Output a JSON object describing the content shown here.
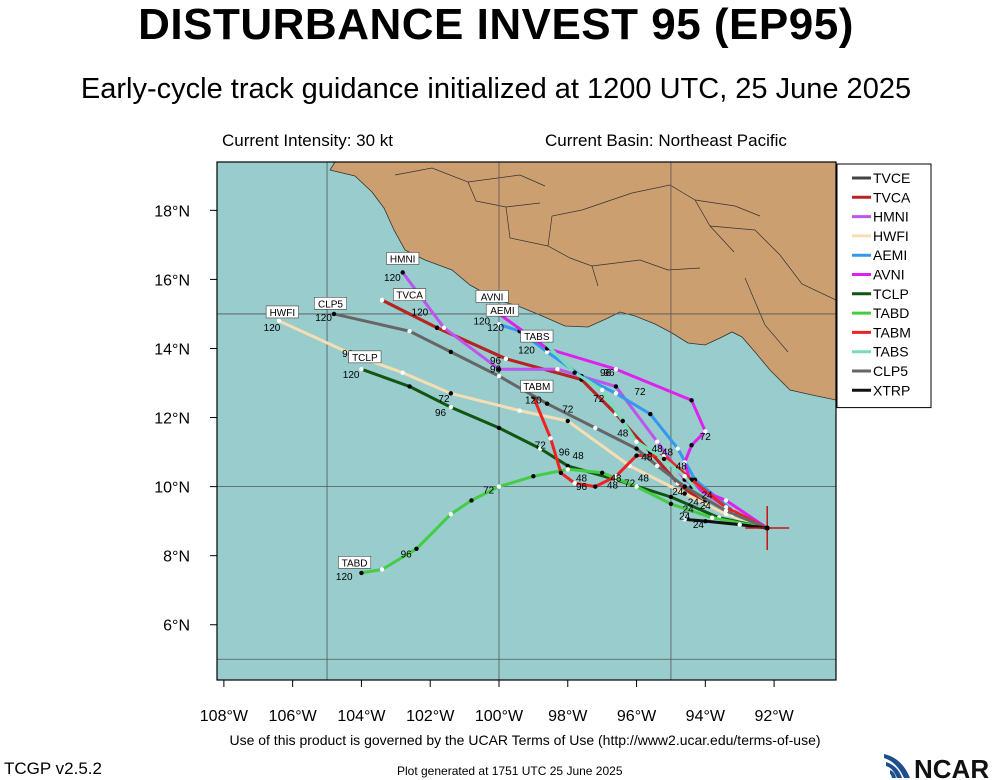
{
  "title": "DISTURBANCE INVEST 95 (EP95)",
  "subtitle": "Early-cycle track guidance initialized at 1200 UTC, 25 June 2025",
  "current_intensity": "Current Intensity: 30 kt",
  "current_basin": "Current Basin: Northeast Pacific",
  "footer": "Use of this product is governed by the UCAR Terms of Use (http://www2.ucar.edu/terms-of-use)",
  "version": "TCGP v2.5.2",
  "generated": "Plot generated at 1751 UTC   25 June 2025",
  "logo_text": "NCAR",
  "colors": {
    "ocean": "#99cccc",
    "land": "#cc9f70"
  },
  "axes": {
    "lon_ticks": [
      "108°W",
      "106°W",
      "104°W",
      "102°W",
      "100°W",
      "98°W",
      "96°W",
      "94°W",
      "92°W"
    ],
    "lon_values": [
      -108,
      -106,
      -104,
      -102,
      -100,
      -98,
      -96,
      -94,
      -92
    ],
    "lat_ticks": [
      "6°N",
      "8°N",
      "10°N",
      "12°N",
      "14°N",
      "16°N",
      "18°N"
    ],
    "lat_values": [
      6,
      8,
      10,
      12,
      14,
      16,
      18
    ],
    "lon_range": [
      -108.2,
      -90.2
    ],
    "lat_range": [
      4.4,
      19.4
    ],
    "grid_lons": [
      -105,
      -100,
      -95,
      -90
    ],
    "grid_lats": [
      5,
      10,
      15
    ]
  },
  "storm_position": {
    "lat": 8.8,
    "lon": -92.2
  },
  "chart_data": {
    "type": "line",
    "legend_position": "top-right",
    "series": [
      {
        "name": "TVCE",
        "color": "#444444",
        "points": [
          [
            -92.2,
            8.8
          ],
          [
            -93.0,
            9.1
          ],
          [
            -94.0,
            9.5
          ],
          [
            -94.8,
            10.1
          ],
          [
            -95.6,
            11.0
          ],
          [
            -96.6,
            12.1
          ],
          [
            -97.6,
            13.1
          ],
          [
            -99.8,
            13.7
          ],
          [
            -101.8,
            14.6
          ],
          [
            -103.4,
            15.4
          ]
        ],
        "labels": []
      },
      {
        "name": "TVCA",
        "color": "#bb2222",
        "points": [
          [
            -92.2,
            8.8
          ],
          [
            -93.0,
            9.1
          ],
          [
            -94.0,
            9.5
          ],
          [
            -94.8,
            10.1
          ],
          [
            -95.6,
            11.0
          ],
          [
            -96.6,
            12.1
          ],
          [
            -97.6,
            13.1
          ],
          [
            -99.8,
            13.7
          ],
          [
            -101.8,
            14.6
          ],
          [
            -103.4,
            15.4
          ]
        ],
        "labels": [
          {
            "lon": -102.3,
            "lat": 14.95,
            "text": "120"
          }
        ],
        "tag": {
          "text": "TVCA",
          "lon": -102.6,
          "lat": 15.5
        }
      },
      {
        "name": "HMNI",
        "color": "#bb55ee",
        "points": [
          [
            -92.2,
            8.8
          ],
          [
            -93.4,
            9.4
          ],
          [
            -94.6,
            10.2
          ],
          [
            -95.4,
            11.3
          ],
          [
            -96.6,
            12.9
          ],
          [
            -98.3,
            13.4
          ],
          [
            -100.0,
            13.4
          ],
          [
            -101.6,
            14.6
          ],
          [
            -102.8,
            16.2
          ]
        ],
        "labels": [
          {
            "lon": -96.8,
            "lat": 13.2,
            "text": "96"
          },
          {
            "lon": -103.1,
            "lat": 15.95,
            "text": "120"
          }
        ],
        "tag": {
          "text": "HMNI",
          "lon": -102.8,
          "lat": 16.55
        }
      },
      {
        "name": "HWFI",
        "color": "#f5deb3",
        "points": [
          [
            -92.2,
            8.8
          ],
          [
            -93.4,
            9.2
          ],
          [
            -94.6,
            9.8
          ],
          [
            -96.2,
            10.6
          ],
          [
            -98.0,
            11.9
          ],
          [
            -99.4,
            12.2
          ],
          [
            -101.4,
            12.7
          ],
          [
            -102.8,
            13.3
          ],
          [
            -104.2,
            13.8
          ],
          [
            -106.4,
            14.8
          ]
        ],
        "labels": [
          {
            "lon": -101.6,
            "lat": 12.45,
            "text": "72"
          },
          {
            "lon": -104.4,
            "lat": 13.75,
            "text": "96"
          },
          {
            "lon": -106.6,
            "lat": 14.5,
            "text": "120"
          }
        ],
        "tag": {
          "text": "HWFI",
          "lon": -106.3,
          "lat": 15.0
        }
      },
      {
        "name": "AEMI",
        "color": "#3399ee",
        "points": [
          [
            -92.2,
            8.8
          ],
          [
            -93.2,
            9.3
          ],
          [
            -94.3,
            10.2
          ],
          [
            -94.8,
            11.1
          ],
          [
            -95.6,
            12.1
          ],
          [
            -96.6,
            12.7
          ],
          [
            -97.6,
            13.2
          ],
          [
            -98.6,
            13.9
          ],
          [
            -99.4,
            14.5
          ],
          [
            -100.0,
            14.7
          ]
        ],
        "labels": [
          {
            "lon": -95.9,
            "lat": 12.65,
            "text": "72"
          },
          {
            "lon": -100.1,
            "lat": 14.5,
            "text": "120"
          }
        ],
        "tag": {
          "text": "AEMI",
          "lon": -99.9,
          "lat": 15.05
        }
      },
      {
        "name": "AVNI",
        "color": "#dd22ee",
        "points": [
          [
            -92.2,
            8.8
          ],
          [
            -93.4,
            9.6
          ],
          [
            -94.4,
            10.0
          ],
          [
            -94.6,
            10.7
          ],
          [
            -94.4,
            11.2
          ],
          [
            -94.0,
            11.6
          ],
          [
            -94.4,
            12.5
          ],
          [
            -96.6,
            13.4
          ],
          [
            -98.6,
            14.0
          ],
          [
            -100.0,
            15.0
          ]
        ],
        "labels": [
          {
            "lon": -94.0,
            "lat": 11.35,
            "text": "72"
          },
          {
            "lon": -96.9,
            "lat": 13.2,
            "text": "96"
          },
          {
            "lon": -100.5,
            "lat": 14.7,
            "text": "120"
          }
        ],
        "tag": {
          "text": "AVNI",
          "lon": -100.2,
          "lat": 15.45
        }
      },
      {
        "name": "TCLP",
        "color": "#115511",
        "points": [
          [
            -92.2,
            8.8
          ],
          [
            -93.6,
            9.1
          ],
          [
            -95.0,
            9.7
          ],
          [
            -96.6,
            10.2
          ],
          [
            -98.0,
            10.6
          ],
          [
            -98.8,
            11.1
          ],
          [
            -100.0,
            11.7
          ],
          [
            -101.4,
            12.3
          ],
          [
            -102.6,
            12.9
          ],
          [
            -104.0,
            13.4
          ]
        ],
        "labels": [
          {
            "lon": -101.7,
            "lat": 12.05,
            "text": "96"
          },
          {
            "lon": -104.3,
            "lat": 13.15,
            "text": "120"
          }
        ],
        "tag": {
          "text": "TCLP",
          "lon": -103.9,
          "lat": 13.7
        }
      },
      {
        "name": "TABD",
        "color": "#44cc44",
        "points": [
          [
            -92.2,
            8.8
          ],
          [
            -93.8,
            9.1
          ],
          [
            -95.0,
            9.5
          ],
          [
            -96.0,
            10.0
          ],
          [
            -97.0,
            10.4
          ],
          [
            -98.0,
            10.5
          ],
          [
            -99.0,
            10.3
          ],
          [
            -100.0,
            10.0
          ],
          [
            -100.8,
            9.6
          ],
          [
            -101.4,
            9.2
          ],
          [
            -102.4,
            8.2
          ],
          [
            -103.4,
            7.6
          ],
          [
            -104.0,
            7.5
          ]
        ],
        "labels": [
          {
            "lon": -100.3,
            "lat": 9.8,
            "text": "72"
          },
          {
            "lon": -102.7,
            "lat": 7.95,
            "text": "96"
          },
          {
            "lon": -104.5,
            "lat": 7.3,
            "text": "120"
          }
        ],
        "tag": {
          "text": "TABD",
          "lon": -104.2,
          "lat": 7.75
        }
      },
      {
        "name": "TABM",
        "color": "#ee2222",
        "points": [
          [
            -92.2,
            8.8
          ],
          [
            -93.4,
            9.4
          ],
          [
            -94.4,
            10.2
          ],
          [
            -95.2,
            10.9
          ],
          [
            -96.0,
            10.9
          ],
          [
            -96.6,
            10.3
          ],
          [
            -97.2,
            10.0
          ],
          [
            -97.8,
            10.1
          ],
          [
            -98.2,
            10.4
          ],
          [
            -98.5,
            11.4
          ],
          [
            -99.0,
            12.6
          ]
        ],
        "labels": [
          {
            "lon": -97.6,
            "lat": 9.9,
            "text": "96"
          },
          {
            "lon": -99.0,
            "lat": 12.4,
            "text": "120"
          }
        ],
        "tag": {
          "text": "TABM",
          "lon": -98.9,
          "lat": 12.85
        }
      },
      {
        "name": "TABS",
        "color": "#77ddbb",
        "points": [
          [
            -92.2,
            8.8
          ],
          [
            -93.2,
            9.2
          ],
          [
            -94.0,
            9.6
          ],
          [
            -94.6,
            10.3
          ],
          [
            -95.2,
            10.8
          ],
          [
            -96.0,
            11.3
          ],
          [
            -96.4,
            11.9
          ],
          [
            -97.0,
            12.8
          ],
          [
            -97.8,
            13.3
          ],
          [
            -98.8,
            14.3
          ]
        ],
        "labels": [
          {
            "lon": -97.1,
            "lat": 12.45,
            "text": "72"
          },
          {
            "lon": -99.2,
            "lat": 13.85,
            "text": "120"
          }
        ],
        "tag": {
          "text": "TABS",
          "lon": -98.9,
          "lat": 14.3
        }
      },
      {
        "name": "CLP5",
        "color": "#666666",
        "points": [
          [
            -92.2,
            8.8
          ],
          [
            -93.4,
            9.3
          ],
          [
            -94.6,
            10.0
          ],
          [
            -95.4,
            10.6
          ],
          [
            -96.0,
            11.1
          ],
          [
            -97.2,
            11.7
          ],
          [
            -98.6,
            12.4
          ],
          [
            -100.0,
            13.2
          ],
          [
            -101.4,
            13.9
          ],
          [
            -102.6,
            14.5
          ],
          [
            -104.8,
            15.0
          ]
        ],
        "labels": [
          {
            "lon": -98.0,
            "lat": 12.15,
            "text": "72"
          },
          {
            "lon": -100.1,
            "lat": 13.3,
            "text": "96"
          },
          {
            "lon": -105.1,
            "lat": 14.8,
            "text": "120"
          }
        ],
        "tag": {
          "text": "CLP5",
          "lon": -104.9,
          "lat": 15.25
        }
      },
      {
        "name": "XTRP",
        "color": "#111111",
        "points": [
          [
            -92.2,
            8.8
          ],
          [
            -93.0,
            8.9
          ],
          [
            -94.0,
            9.0
          ],
          [
            -94.6,
            9.05
          ]
        ],
        "labels": [
          {
            "lon": -94.2,
            "lat": 8.8,
            "text": "24"
          }
        ]
      }
    ],
    "hour_labels": [
      {
        "lon": -94.8,
        "lat": 9.75,
        "text": "24"
      },
      {
        "lon": -94.35,
        "lat": 9.45,
        "text": "24"
      },
      {
        "lon": -93.95,
        "lat": 9.65,
        "text": "24"
      },
      {
        "lon": -94.5,
        "lat": 9.25,
        "text": "24"
      },
      {
        "lon": -94.6,
        "lat": 9.05,
        "text": "24"
      },
      {
        "lon": -94.0,
        "lat": 9.35,
        "text": "24"
      },
      {
        "lon": -94.7,
        "lat": 10.5,
        "text": "48"
      },
      {
        "lon": -95.7,
        "lat": 10.75,
        "text": "48"
      },
      {
        "lon": -95.4,
        "lat": 11.0,
        "text": "48"
      },
      {
        "lon": -95.1,
        "lat": 10.9,
        "text": "48"
      },
      {
        "lon": -95.8,
        "lat": 10.15,
        "text": "48"
      },
      {
        "lon": -96.6,
        "lat": 10.15,
        "text": "48"
      },
      {
        "lon": -96.7,
        "lat": 9.95,
        "text": "48"
      },
      {
        "lon": -97.6,
        "lat": 10.15,
        "text": "48"
      },
      {
        "lon": -97.7,
        "lat": 10.8,
        "text": "48"
      },
      {
        "lon": -96.4,
        "lat": 11.45,
        "text": "48"
      },
      {
        "lon": -96.2,
        "lat": 10.0,
        "text": "72"
      },
      {
        "lon": -98.8,
        "lat": 11.1,
        "text": "72"
      },
      {
        "lon": -100.1,
        "lat": 13.55,
        "text": "96"
      },
      {
        "lon": -98.1,
        "lat": 10.9,
        "text": "96"
      }
    ]
  }
}
